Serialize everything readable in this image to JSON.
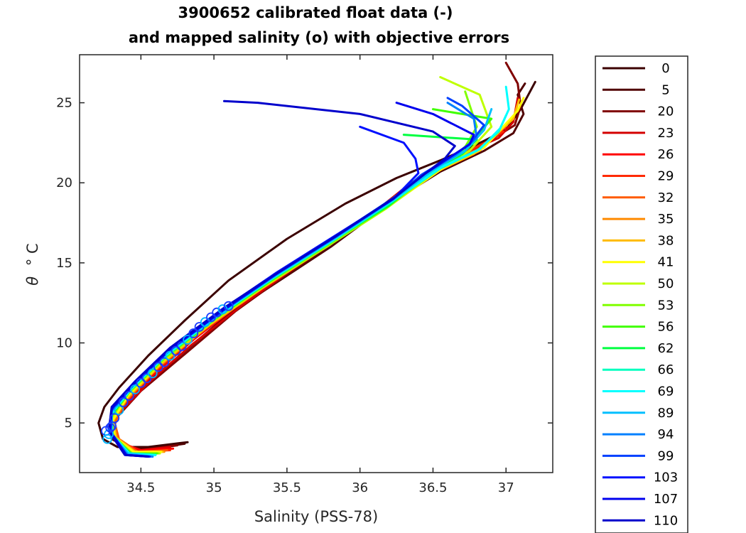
{
  "chart_data": {
    "type": "line",
    "title_line1": "3900652 calibrated float data (-)",
    "title_line2": "and mapped salinity (o) with objective errors",
    "xlabel": "Salinity (PSS-78)",
    "ylabel_symbol": "θ",
    "ylabel_unit": "° C",
    "xlim": [
      34.08,
      37.32
    ],
    "ylim": [
      1.9,
      28.0
    ],
    "xticks": [
      34.5,
      35,
      35.5,
      36,
      36.5,
      37
    ],
    "xtick_labels": [
      "34.5",
      "35",
      "35.5",
      "36",
      "36.5",
      "37"
    ],
    "yticks": [
      5,
      10,
      15,
      20,
      25
    ],
    "ytick_labels": [
      "5",
      "10",
      "15",
      "20",
      "25"
    ],
    "grid": false,
    "legend_placement": "outside-right",
    "series": [
      {
        "name": "0",
        "color": "#3b0000",
        "x": [
          34.82,
          34.55,
          34.34,
          34.24,
          34.21,
          34.25,
          34.35,
          34.55,
          34.8,
          35.1,
          35.5,
          35.9,
          36.25,
          36.55,
          36.8,
          37.0,
          37.1,
          37.2
        ],
        "y": [
          3.8,
          3.5,
          3.5,
          4.0,
          5.0,
          6.0,
          7.2,
          9.2,
          11.4,
          13.9,
          16.5,
          18.7,
          20.3,
          21.4,
          22.4,
          23.3,
          24.6,
          26.3
        ]
      },
      {
        "name": "5",
        "color": "#500000",
        "x": [
          34.8,
          34.55,
          34.4,
          34.3,
          34.29,
          34.45,
          34.7,
          35.1,
          35.4,
          35.8,
          36.2,
          36.55,
          36.85,
          37.05,
          37.12,
          37.08,
          37.13
        ],
        "y": [
          3.7,
          3.4,
          3.5,
          4.0,
          5.0,
          6.8,
          8.7,
          11.8,
          13.6,
          16.0,
          18.7,
          20.7,
          22.0,
          23.1,
          24.3,
          25.5,
          26.2
        ]
      },
      {
        "name": "20",
        "color": "#800000",
        "x": [
          34.75,
          34.5,
          34.38,
          34.3,
          34.32,
          34.5,
          34.8,
          35.15,
          35.5,
          35.9,
          36.3,
          36.65,
          36.9,
          37.06,
          37.1,
          37.08,
          37.0
        ],
        "y": [
          3.6,
          3.3,
          3.6,
          4.2,
          5.2,
          7.0,
          9.3,
          12.0,
          14.3,
          16.8,
          19.6,
          21.6,
          22.7,
          23.6,
          24.8,
          26.2,
          27.5
        ]
      },
      {
        "name": "23",
        "color": "#d40000",
        "x": [
          34.7,
          34.5,
          34.36,
          34.3,
          34.35,
          34.55,
          34.85,
          35.2,
          35.55,
          35.95,
          36.35,
          36.7,
          36.95,
          37.05,
          37.08
        ],
        "y": [
          3.5,
          3.3,
          3.7,
          4.4,
          5.6,
          7.5,
          9.9,
          12.4,
          14.7,
          17.1,
          20.0,
          21.8,
          22.8,
          23.8,
          25.3
        ]
      },
      {
        "name": "26",
        "color": "#ff0000",
        "x": [
          34.72,
          34.5,
          34.35,
          34.3,
          34.36,
          34.56,
          34.86,
          35.2,
          35.6,
          36.0,
          36.4,
          36.72,
          36.9,
          37.0
        ],
        "y": [
          3.4,
          3.3,
          3.8,
          4.6,
          5.9,
          7.8,
          10.2,
          12.6,
          15.0,
          17.4,
          20.2,
          21.9,
          22.7,
          23.5
        ]
      },
      {
        "name": "29",
        "color": "#ff2a00",
        "x": [
          34.7,
          34.48,
          34.34,
          34.3,
          34.37,
          34.58,
          34.9,
          35.25,
          35.62,
          36.02,
          36.42,
          36.72,
          36.88,
          36.98
        ],
        "y": [
          3.3,
          3.2,
          3.9,
          4.8,
          6.1,
          8.1,
          10.6,
          12.9,
          15.2,
          17.6,
          20.4,
          21.9,
          22.6,
          23.2
        ]
      },
      {
        "name": "32",
        "color": "#ff5a00",
        "x": [
          34.68,
          34.48,
          34.35,
          34.32,
          34.4,
          34.62,
          34.95,
          35.3,
          35.7,
          36.1,
          36.38,
          36.62,
          36.85
        ],
        "y": [
          3.3,
          3.2,
          4.0,
          5.0,
          6.4,
          8.5,
          11.0,
          13.3,
          15.6,
          18.0,
          20.1,
          21.5,
          22.2
        ]
      },
      {
        "name": "35",
        "color": "#ff8a00",
        "x": [
          34.66,
          34.46,
          34.33,
          34.31,
          34.4,
          34.63,
          34.97,
          35.33,
          35.72,
          36.12,
          36.5,
          36.78,
          36.86
        ],
        "y": [
          3.2,
          3.2,
          4.0,
          5.1,
          6.5,
          8.6,
          11.1,
          13.4,
          15.7,
          18.1,
          20.6,
          21.8,
          22.5
        ]
      },
      {
        "name": "38",
        "color": "#ffbb00",
        "x": [
          34.65,
          34.46,
          34.33,
          34.31,
          34.41,
          34.64,
          34.98,
          35.34,
          35.73,
          36.14,
          36.55,
          36.82,
          36.92,
          37.05,
          37.09
        ],
        "y": [
          3.2,
          3.2,
          4.1,
          5.2,
          6.6,
          8.7,
          11.2,
          13.5,
          15.8,
          18.2,
          20.8,
          22.0,
          22.9,
          24.0,
          25.2
        ]
      },
      {
        "name": "41",
        "color": "#ffff00",
        "x": [
          34.64,
          34.45,
          34.32,
          34.31,
          34.41,
          34.64,
          34.98,
          35.35,
          35.75,
          36.16,
          36.58,
          36.85,
          36.95,
          37.08,
          37.12
        ],
        "y": [
          3.2,
          3.2,
          4.1,
          5.2,
          6.7,
          8.8,
          11.3,
          13.6,
          15.9,
          18.3,
          21.0,
          22.2,
          23.2,
          24.5,
          25.3
        ]
      },
      {
        "name": "50",
        "color": "#bfff00",
        "x": [
          34.63,
          34.44,
          34.31,
          34.3,
          34.41,
          34.65,
          35.0,
          35.37,
          35.77,
          36.18,
          36.55,
          36.75,
          36.9,
          36.82,
          36.55
        ],
        "y": [
          3.1,
          3.1,
          4.1,
          5.3,
          6.8,
          8.9,
          11.4,
          13.7,
          16.0,
          18.4,
          20.9,
          22.0,
          23.5,
          25.5,
          26.6
        ]
      },
      {
        "name": "53",
        "color": "#80ff00",
        "x": [
          34.62,
          34.44,
          34.31,
          34.3,
          34.42,
          34.66,
          35.01,
          35.38,
          35.78,
          36.19,
          36.5,
          36.68,
          36.8,
          36.72
        ],
        "y": [
          3.1,
          3.1,
          4.2,
          5.4,
          6.9,
          9.0,
          11.5,
          13.8,
          16.1,
          18.5,
          20.7,
          21.6,
          23.5,
          25.7
        ]
      },
      {
        "name": "56",
        "color": "#40ff00",
        "x": [
          34.61,
          34.43,
          34.3,
          34.3,
          34.42,
          34.66,
          35.02,
          35.39,
          35.78,
          36.2,
          36.45,
          36.62,
          36.78,
          36.9,
          36.5
        ],
        "y": [
          3.1,
          3.1,
          4.2,
          5.5,
          7.0,
          9.1,
          11.6,
          13.9,
          16.2,
          18.6,
          20.5,
          21.5,
          22.7,
          24.0,
          24.6
        ]
      },
      {
        "name": "62",
        "color": "#00ff40",
        "x": [
          34.6,
          34.43,
          34.3,
          34.3,
          34.43,
          34.67,
          35.03,
          35.4,
          35.79,
          36.2,
          36.5,
          36.7,
          36.8,
          36.3
        ],
        "y": [
          3.0,
          3.1,
          4.2,
          5.5,
          7.1,
          9.2,
          11.7,
          14.0,
          16.3,
          18.6,
          20.8,
          21.8,
          22.7,
          23.0
        ]
      },
      {
        "name": "66",
        "color": "#00ffbf",
        "x": [
          34.6,
          34.42,
          34.3,
          34.3,
          34.43,
          34.67,
          35.03,
          35.4,
          35.8,
          36.2,
          36.55,
          36.8,
          36.95,
          37.0
        ],
        "y": [
          3.0,
          3.1,
          4.3,
          5.6,
          7.1,
          9.2,
          11.7,
          14.0,
          16.3,
          18.7,
          20.9,
          22.0,
          23.2,
          24.2
        ]
      },
      {
        "name": "69",
        "color": "#00ffff",
        "x": [
          34.6,
          34.42,
          34.3,
          34.3,
          34.44,
          34.68,
          35.04,
          35.41,
          35.81,
          36.21,
          36.56,
          36.82,
          36.96,
          37.02,
          37.0
        ],
        "y": [
          3.0,
          3.1,
          4.3,
          5.6,
          7.2,
          9.3,
          11.8,
          14.1,
          16.4,
          18.8,
          21.0,
          22.1,
          23.4,
          24.6,
          26.0
        ]
      },
      {
        "name": "89",
        "color": "#00bfff",
        "x": [
          34.58,
          34.41,
          34.3,
          34.3,
          34.44,
          34.68,
          35.05,
          35.42,
          35.82,
          36.22,
          36.5,
          36.72,
          36.85,
          36.9
        ],
        "y": [
          2.9,
          3.1,
          4.3,
          5.7,
          7.3,
          9.4,
          11.9,
          14.2,
          16.5,
          18.9,
          20.8,
          22.0,
          23.3,
          24.6
        ]
      },
      {
        "name": "94",
        "color": "#0080ff",
        "x": [
          34.58,
          34.41,
          34.29,
          34.3,
          34.45,
          34.69,
          35.05,
          35.42,
          35.82,
          36.22,
          36.45,
          36.65,
          36.8,
          36.78,
          36.6
        ],
        "y": [
          2.9,
          3.0,
          4.4,
          5.8,
          7.4,
          9.5,
          12.0,
          14.3,
          16.6,
          19.0,
          20.6,
          21.7,
          22.8,
          24.0,
          25.0
        ]
      },
      {
        "name": "99",
        "color": "#0040ff",
        "x": [
          34.56,
          34.4,
          34.29,
          34.3,
          34.45,
          34.69,
          35.06,
          35.43,
          35.83,
          36.23,
          36.42,
          36.6,
          36.75,
          36.85,
          36.7,
          36.6
        ],
        "y": [
          2.9,
          3.0,
          4.4,
          5.8,
          7.4,
          9.5,
          12.0,
          14.3,
          16.6,
          19.0,
          20.5,
          21.5,
          22.4,
          23.6,
          24.8,
          25.3
        ]
      },
      {
        "name": "103",
        "color": "#0010ff",
        "x": [
          34.56,
          34.4,
          34.29,
          34.3,
          34.45,
          34.7,
          35.06,
          35.43,
          35.83,
          36.23,
          36.4,
          36.38,
          36.3,
          36.0
        ],
        "y": [
          2.9,
          3.0,
          4.4,
          5.9,
          7.5,
          9.6,
          12.1,
          14.4,
          16.7,
          19.0,
          20.6,
          21.5,
          22.5,
          23.5
        ]
      },
      {
        "name": "107",
        "color": "#0000ee",
        "x": [
          34.55,
          34.4,
          34.29,
          34.3,
          34.46,
          34.7,
          35.07,
          35.44,
          35.84,
          36.24,
          36.45,
          36.6,
          36.75,
          36.78,
          36.5,
          36.25
        ],
        "y": [
          2.9,
          3.0,
          4.5,
          5.9,
          7.5,
          9.6,
          12.1,
          14.4,
          16.7,
          19.1,
          20.6,
          21.5,
          22.4,
          23.0,
          24.3,
          25.0
        ]
      },
      {
        "name": "110",
        "color": "#0000cc",
        "x": [
          34.55,
          34.39,
          34.28,
          34.3,
          34.46,
          34.7,
          35.07,
          35.44,
          35.84,
          36.24,
          36.45,
          36.58,
          36.65,
          36.5,
          36.0,
          35.3,
          35.07
        ],
        "y": [
          2.9,
          3.0,
          4.5,
          6.0,
          7.6,
          9.7,
          12.2,
          14.4,
          16.7,
          19.1,
          20.6,
          21.5,
          22.3,
          23.2,
          24.3,
          25.0,
          25.1
        ]
      }
    ],
    "mapped_points": {
      "marker": "o",
      "x": [
        34.28,
        34.3,
        34.32,
        34.35,
        34.38,
        34.42,
        34.46,
        34.5,
        34.54,
        34.58,
        34.62,
        34.66,
        34.7,
        34.74,
        34.78,
        34.82,
        34.86,
        34.9,
        34.94,
        34.98,
        35.02,
        35.06,
        35.1,
        34.26,
        34.27,
        34.29
      ],
      "y": [
        4.3,
        4.8,
        5.3,
        5.8,
        6.3,
        6.7,
        7.1,
        7.5,
        7.8,
        8.1,
        8.5,
        8.8,
        9.2,
        9.5,
        9.8,
        10.2,
        10.6,
        11.0,
        11.3,
        11.6,
        11.9,
        12.1,
        12.3,
        4.5,
        4.0,
        4.7
      ]
    }
  }
}
